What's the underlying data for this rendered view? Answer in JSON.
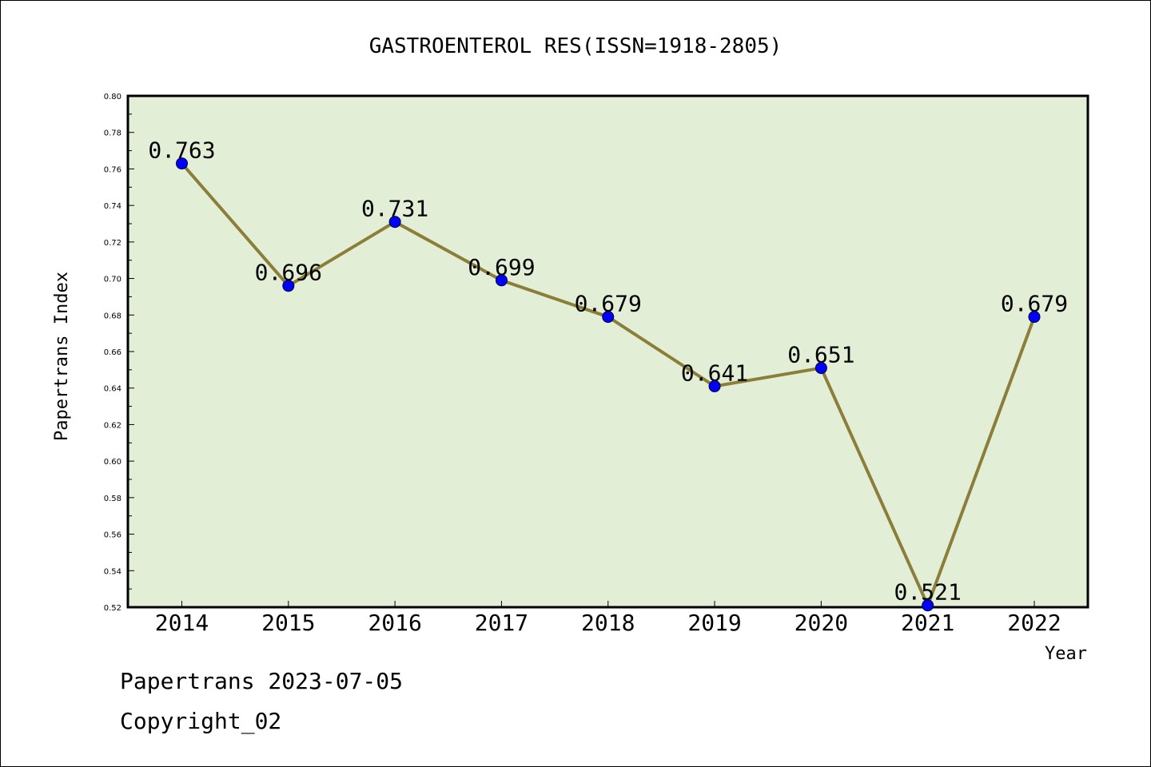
{
  "chart_data": {
    "type": "line",
    "title": "GASTROENTEROL RES(ISSN=1918-2805)",
    "xlabel": "Year",
    "ylabel": "Papertrans Index",
    "categories": [
      "2014",
      "2015",
      "2016",
      "2017",
      "2018",
      "2019",
      "2020",
      "2021",
      "2022"
    ],
    "values": [
      0.763,
      0.696,
      0.731,
      0.699,
      0.679,
      0.641,
      0.651,
      0.521,
      0.679
    ],
    "data_labels": [
      "0.763",
      "0.696",
      "0.731",
      "0.699",
      "0.679",
      "0.641",
      "0.651",
      "0.521",
      "0.679"
    ],
    "ylim": [
      0.52,
      0.8
    ],
    "yticks": [
      "0.52",
      "0.54",
      "0.56",
      "0.58",
      "0.60",
      "0.62",
      "0.64",
      "0.66",
      "0.68",
      "0.70",
      "0.72",
      "0.74",
      "0.76",
      "0.78",
      "0.80"
    ],
    "grid": false,
    "colors": {
      "plot_background": "#e2efd6",
      "line": "#8b7e3a",
      "marker": "#0000ff"
    }
  },
  "footer": {
    "line1": "Papertrans 2023-07-05",
    "line2": "Copyright_02"
  }
}
